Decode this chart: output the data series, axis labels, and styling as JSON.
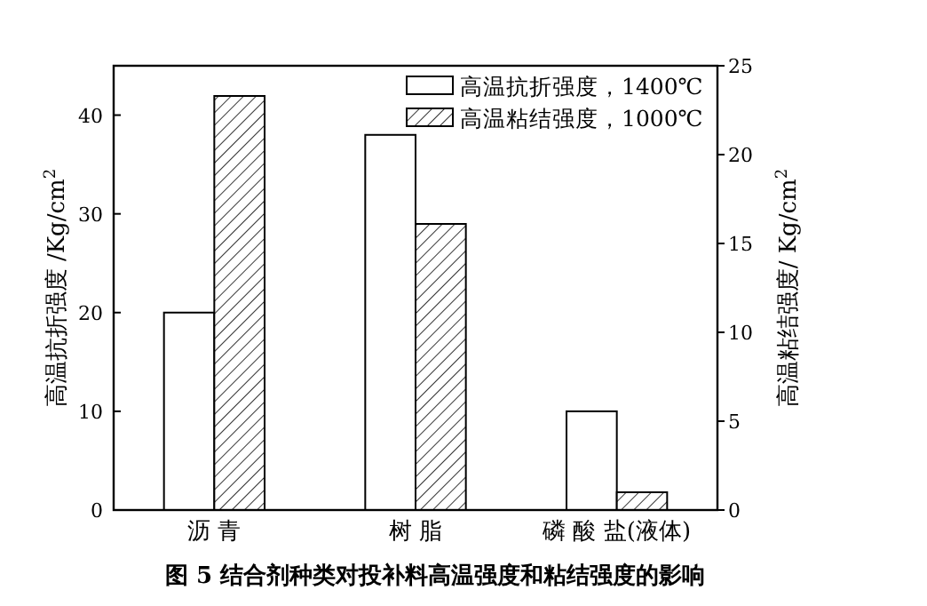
{
  "chart_data": {
    "type": "bar",
    "title": "图 5 结合剂种类对投补料高温强度和粘结强度的影响",
    "categories": [
      "沥 青",
      "树 脂",
      "磷 酸 盐(液体)"
    ],
    "series": [
      {
        "name": "高温抗折强度，1400℃",
        "color": "#ffffff",
        "values": [
          20,
          38,
          10
        ]
      },
      {
        "name": "高温粘结强度，1000℃",
        "color": "#000000",
        "values": [
          23.3,
          16.1,
          1
        ],
        "axis": "y2"
      }
    ],
    "ylabel": "高温抗折强度 /Kg/cm$^{2}$",
    "y2label": "高温粘结强度/ Kg/cm$^{2}$",
    "ylim": [
      0,
      45
    ],
    "yticks": [
      0,
      10,
      20,
      30,
      40
    ],
    "y2lim": [
      0,
      25
    ],
    "y2ticks": [
      0,
      5,
      10,
      15,
      20,
      25
    ],
    "legend": "top right",
    "grid": false
  }
}
